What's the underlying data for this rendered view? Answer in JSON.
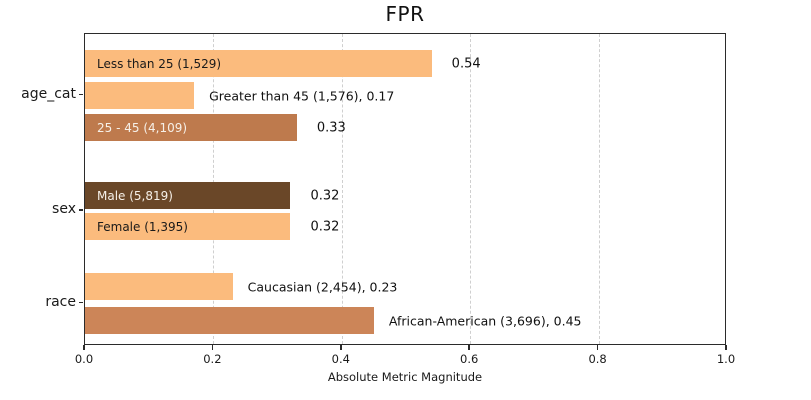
{
  "chart_data": {
    "type": "bar",
    "orientation": "horizontal",
    "title": "FPR",
    "xlabel": "Absolute Metric Magnitude",
    "xlim": [
      0.0,
      1.0
    ],
    "xticks": [
      0.0,
      0.2,
      0.4,
      0.6,
      0.8,
      1.0
    ],
    "grid": "vertical-dashed",
    "legend": "none",
    "palette": {
      "light_orange": {
        "bg": "#FBBB7D",
        "fg": "#1a1a1a"
      },
      "sienna": {
        "bg": "#BE7A4D",
        "fg": "#F6F0E8"
      },
      "terracotta": {
        "bg": "#CC8558",
        "fg": "#1a1a1a"
      },
      "dark_brown": {
        "bg": "#6A4728",
        "fg": "#F6F0E8"
      }
    },
    "groups": [
      {
        "label": "age_cat",
        "bars": [
          {
            "label": "Less than 25 (1,529)",
            "value": 0.54,
            "color": "light_orange",
            "label_inside": true
          },
          {
            "label": "Greater than 45 (1,576)",
            "value": 0.17,
            "color": "light_orange",
            "label_inside": false
          },
          {
            "label": "25 - 45 (4,109)",
            "value": 0.33,
            "color": "sienna",
            "label_inside": true
          }
        ]
      },
      {
        "label": "sex",
        "bars": [
          {
            "label": "Male (5,819)",
            "value": 0.32,
            "color": "dark_brown",
            "label_inside": true
          },
          {
            "label": "Female (1,395)",
            "value": 0.32,
            "color": "light_orange",
            "label_inside": true
          }
        ]
      },
      {
        "label": "race",
        "bars": [
          {
            "label": "Caucasian (2,454)",
            "value": 0.23,
            "color": "light_orange",
            "label_inside": false
          },
          {
            "label": "African-American (3,696)",
            "value": 0.45,
            "color": "terracotta",
            "label_inside": false
          }
        ]
      }
    ]
  }
}
